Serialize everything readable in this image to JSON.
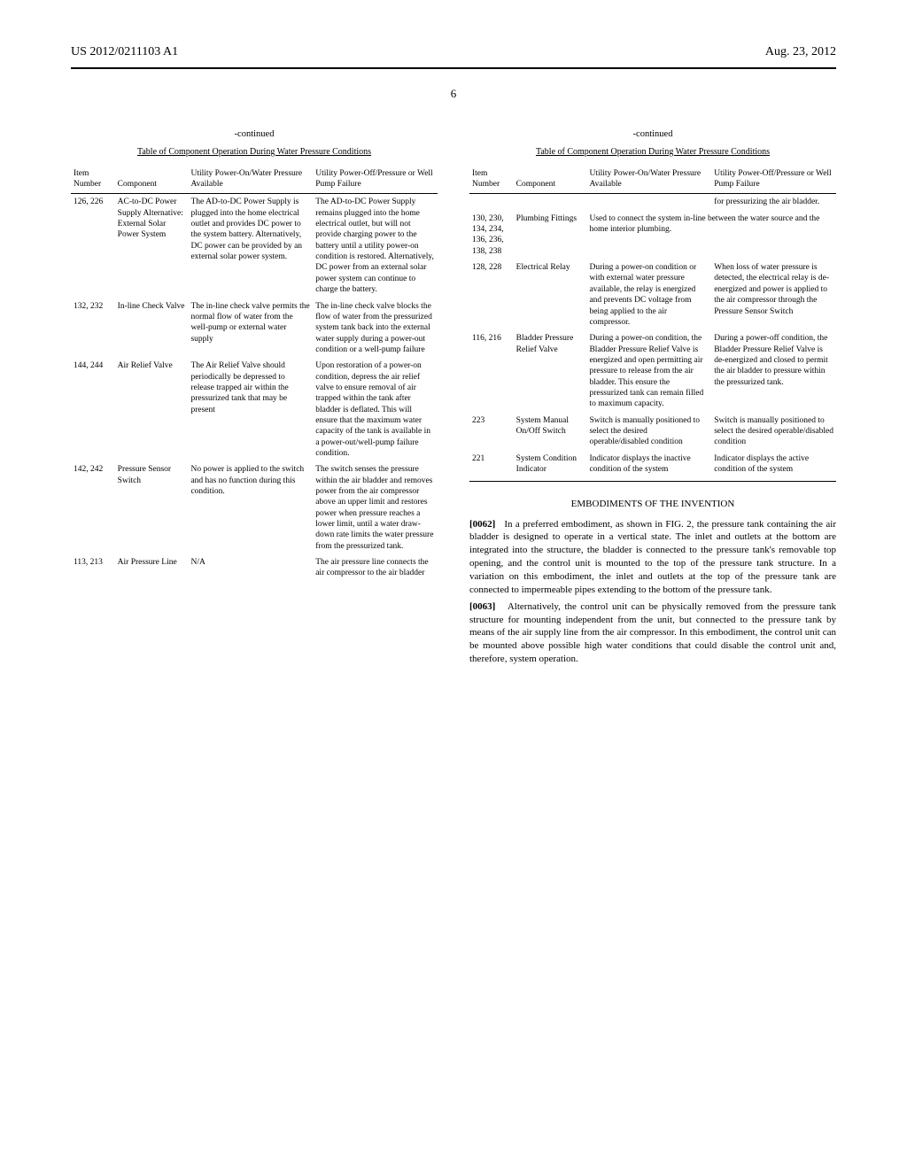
{
  "header": {
    "pub_number": "US 2012/0211103 A1",
    "pub_date": "Aug. 23, 2012"
  },
  "page_number": "6",
  "continued_label": "-continued",
  "table_title": "Table of Component Operation During Water Pressure Conditions",
  "table_headers": {
    "item": "Item Number",
    "component": "Component",
    "on": "Utility Power-On/Water Pressure Available",
    "off": "Utility Power-Off/Pressure or Well Pump Failure"
  },
  "left_rows": [
    {
      "item": "126, 226",
      "component": "AC-to-DC Power Supply Alternative: External Solar Power System",
      "on": "The AD-to-DC Power Supply is plugged into the home electrical outlet and provides DC power to the system battery. Alternatively, DC power can be provided by an external solar power system.",
      "off": "The AD-to-DC Power Supply remains plugged into the home electrical outlet, but will not provide charging power to the battery until a utility power-on condition is restored. Alternatively, DC power from an external solar power system can continue to charge the battery."
    },
    {
      "item": "132, 232",
      "component": "In-line Check Valve",
      "on": "The in-line check valve permits the normal flow of water from the well-pump or external water supply",
      "off": "The in-line check valve blocks the flow of water from the pressurized system tank back into the external water supply during a power-out condition or a well-pump failure"
    },
    {
      "item": "144, 244",
      "component": "Air Relief Valve",
      "on": "The Air Relief Valve should periodically be depressed to release trapped air within the pressurized tank that may be present",
      "off": "Upon restoration of a power-on condition, depress the air relief valve to ensure removal of air trapped within the tank after bladder is deflated. This will ensure that the maximum water capacity of the tank is available in a power-out/well-pump failure condition."
    },
    {
      "item": "142, 242",
      "component": "Pressure Sensor Switch",
      "on": "No power is applied to the switch and has no function during this condition.",
      "off": "The switch senses the pressure within the air bladder and removes power from the air compressor above an upper limit and restores power when pressure reaches a lower limit, until a water draw-down rate limits the water pressure from the pressurized tank."
    },
    {
      "item": "113, 213",
      "component": "Air Pressure Line",
      "on": "N/A",
      "off": "The air pressure line connects the air compressor to the air bladder"
    }
  ],
  "right_rows": [
    {
      "item": "",
      "component": "",
      "on": "",
      "off": "for pressurizing the air bladder."
    },
    {
      "item": "130, 230, 134, 234, 136, 236, 138, 238",
      "component": "Plumbing Fittings",
      "on": "Used to connect the system in-line between the water source and the home interior plumbing.",
      "off": ""
    },
    {
      "item": "128, 228",
      "component": "Electrical Relay",
      "on": "During a power-on condition or with external water pressure available, the relay is energized and prevents DC voltage from being applied to the air compressor.",
      "off": "When loss of water pressure is detected, the electrical relay is de-energized and power is applied to the air compressor through the Pressure Sensor Switch"
    },
    {
      "item": "116, 216",
      "component": "Bladder Pressure Relief Valve",
      "on": "During a power-on condition, the Bladder Pressure Relief Valve is energized and open permitting air pressure to release from the air bladder. This ensure the pressurized tank can remain filled to maximum capacity.",
      "off": "During a power-off condition, the Bladder Pressure Relief Valve is de-energized and closed to permit the air bladder to pressure within the pressurized tank."
    },
    {
      "item": "223",
      "component": "System Manual On/Off Switch",
      "on": "Switch is manually positioned to select the desired operable/disabled condition",
      "off": "Switch is manually positioned to select the desired operable/disabled condition"
    },
    {
      "item": "221",
      "component": "System Condition Indicator",
      "on": "Indicator displays the inactive condition of the system",
      "off": "Indicator displays the active condition of the system"
    }
  ],
  "section_heading": "EMBODIMENTS OF THE INVENTION",
  "paragraphs": [
    {
      "num": "[0062]",
      "text": "In a preferred embodiment, as shown in FIG. 2, the pressure tank containing the air bladder is designed to operate in a vertical state. The inlet and outlets at the bottom are integrated into the structure, the bladder is connected to the pressure tank's removable top opening, and the control unit is mounted to the top of the pressure tank structure. In a variation on this embodiment, the inlet and outlets at the top of the pressure tank are connected to impermeable pipes extending to the bottom of the pressure tank."
    },
    {
      "num": "[0063]",
      "text": "Alternatively, the control unit can be physically removed from the pressure tank structure for mounting independent from the unit, but connected to the pressure tank by means of the air supply line from the air compressor. In this embodiment, the control unit can be mounted above possible high water conditions that could disable the control unit and, therefore, system operation."
    }
  ]
}
